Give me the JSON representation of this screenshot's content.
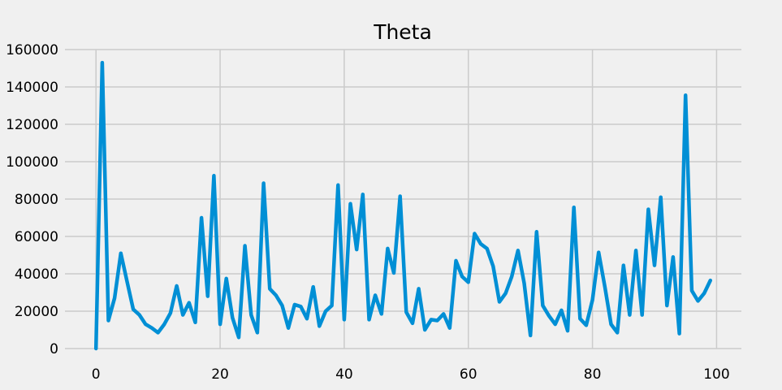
{
  "chart_data": {
    "type": "line",
    "title": "Theta",
    "xlabel": "",
    "ylabel": "",
    "xlim": [
      -5,
      104
    ],
    "ylim": [
      0,
      160000
    ],
    "grid": true,
    "xticks": [
      0,
      20,
      40,
      60,
      80,
      100
    ],
    "yticks": [
      0,
      20000,
      40000,
      60000,
      80000,
      100000,
      120000,
      140000,
      160000
    ],
    "series": [
      {
        "color": "#008fd5",
        "x": [
          0,
          1,
          2,
          3,
          4,
          5,
          6,
          7,
          8,
          9,
          10,
          11,
          12,
          13,
          14,
          15,
          16,
          17,
          18,
          19,
          20,
          21,
          22,
          23,
          24,
          25,
          26,
          27,
          28,
          29,
          30,
          31,
          32,
          33,
          34,
          35,
          36,
          37,
          38,
          39,
          40,
          41,
          42,
          43,
          44,
          45,
          46,
          47,
          48,
          49,
          50,
          51,
          52,
          53,
          54,
          55,
          56,
          57,
          58,
          59,
          60,
          61,
          62,
          63,
          64,
          65,
          66,
          67,
          68,
          69,
          70,
          71,
          72,
          73,
          74,
          75,
          76,
          77,
          78,
          79,
          80,
          81,
          82,
          83,
          84,
          85,
          86,
          87,
          88,
          89,
          90,
          91,
          92,
          93,
          94,
          95,
          96,
          97,
          98,
          99
        ],
        "values": [
          0,
          153000,
          15000,
          27000,
          51000,
          36000,
          21000,
          18000,
          13000,
          11000,
          8500,
          13000,
          19000,
          33500,
          18000,
          24500,
          14000,
          70000,
          28000,
          92500,
          13000,
          37500,
          16500,
          6000,
          55000,
          18000,
          8500,
          88500,
          32000,
          28500,
          23000,
          11000,
          23500,
          22500,
          16000,
          33000,
          12000,
          20000,
          23000,
          87500,
          15500,
          77500,
          53000,
          82500,
          15500,
          28500,
          18500,
          53500,
          40500,
          81500,
          19500,
          13500,
          32000,
          10000,
          15500,
          15000,
          18500,
          11000,
          47000,
          38500,
          35500,
          61500,
          56000,
          53500,
          44000,
          25000,
          29500,
          38500,
          52500,
          35000,
          7000,
          62500,
          23000,
          17500,
          13000,
          20500,
          9500,
          75500,
          16000,
          12500,
          26000,
          51500,
          33000,
          13000,
          8500,
          44500,
          18000,
          52500,
          18000,
          74500,
          44500,
          81000,
          23000,
          49000,
          8000,
          135500,
          31000,
          25500,
          29500,
          36500
        ]
      }
    ]
  }
}
